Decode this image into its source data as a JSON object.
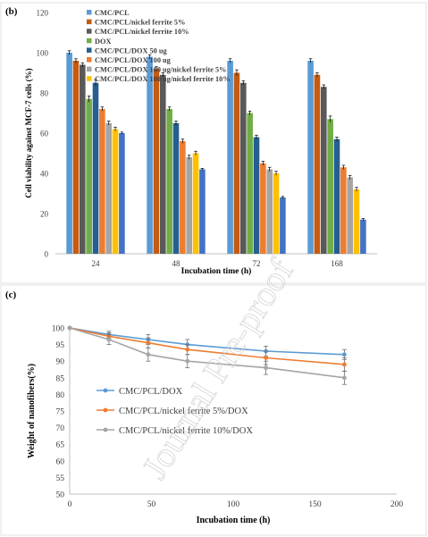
{
  "watermark": "Journal Pre-proof",
  "chart_data": [
    {
      "panel_label": "(b)",
      "type": "bar",
      "title": "",
      "xlabel": "Incubation time (h)",
      "ylabel": "Cell viability against MCF-7 cells (%)",
      "ylim": [
        0,
        120
      ],
      "yticks": [
        "0",
        "20",
        "40",
        "60",
        "80",
        "100",
        "120"
      ],
      "categories": [
        "24",
        "48",
        "72",
        "168"
      ],
      "grid": false,
      "legend_position": "top-left",
      "series": [
        {
          "name": "CMC/PCL",
          "color": "#5b9bd5",
          "values": [
            100,
            98,
            96,
            96
          ],
          "errors": [
            1,
            1,
            1,
            1
          ]
        },
        {
          "name": "CMC/PCL/nickel ferrite 5%",
          "color": "#c55a11",
          "values": [
            96,
            92,
            90,
            89
          ],
          "errors": [
            1,
            1,
            1.5,
            1
          ]
        },
        {
          "name": "CMC/PCL/nickel ferrite 10%",
          "color": "#595959",
          "values": [
            94,
            89,
            85,
            83
          ],
          "errors": [
            1,
            1,
            1,
            1
          ]
        },
        {
          "name": "DOX",
          "color": "#70ad47",
          "values": [
            77,
            72,
            70,
            67
          ],
          "errors": [
            1.5,
            1,
            1,
            1.5
          ]
        },
        {
          "name": "CMC/PCL/DOX 50 ug",
          "color": "#255e91",
          "values": [
            85,
            65,
            58,
            57
          ],
          "errors": [
            1.5,
            1,
            1,
            1
          ]
        },
        {
          "name": "CMC/PCL/DOX 100 ug",
          "color": "#ed7d31",
          "values": [
            72,
            56,
            45,
            43
          ],
          "errors": [
            1,
            1,
            1,
            1
          ]
        },
        {
          "name": "CMC/PCL/DOX 100 ug/nickel ferrite 5%",
          "color": "#a5a5a5",
          "values": [
            65,
            48,
            42,
            38
          ],
          "errors": [
            1,
            1,
            1,
            1
          ]
        },
        {
          "name": "CMC/PCL/DOX 100 ug/nickel ferrite 10%",
          "color": "#ffc000",
          "values": [
            62,
            50,
            40,
            32
          ],
          "errors": [
            1,
            1,
            1,
            1
          ]
        },
        {
          "name": "",
          "color": "#4472c4",
          "values": [
            60,
            42,
            28,
            17
          ],
          "errors": [
            0.5,
            0.5,
            0.5,
            0.5
          ]
        }
      ]
    },
    {
      "panel_label": "(c)",
      "type": "line",
      "title": "",
      "xlabel": "Incubation time (h)",
      "ylabel": "Weight of nanofibers(%)",
      "xlim": [
        0,
        200
      ],
      "ylim": [
        50,
        100
      ],
      "xticks": [
        "0",
        "50",
        "100",
        "150",
        "200"
      ],
      "yticks": [
        "50",
        "55",
        "60",
        "65",
        "70",
        "75",
        "80",
        "85",
        "90",
        "95",
        "100"
      ],
      "grid": false,
      "legend_position": "middle-left",
      "series": [
        {
          "name": "CMC/PCL/DOX",
          "color": "#5b9bd5",
          "x": [
            0,
            24,
            48,
            72,
            120,
            168
          ],
          "y": [
            100,
            98,
            96.5,
            95,
            93,
            92
          ],
          "errors": [
            0,
            1,
            1.5,
            1.5,
            1.5,
            1.5
          ]
        },
        {
          "name": "CMC/PCL/nickel ferrite 5%/DOX",
          "color": "#ed7d31",
          "x": [
            0,
            24,
            48,
            72,
            120,
            168
          ],
          "y": [
            100,
            97.5,
            95.5,
            93.5,
            91,
            89
          ],
          "errors": [
            0,
            1,
            1.5,
            1.5,
            2,
            2
          ]
        },
        {
          "name": "CMC/PCL/nickel ferrite 10%/DOX",
          "color": "#a5a5a5",
          "x": [
            0,
            24,
            48,
            72,
            120,
            168
          ],
          "y": [
            100,
            96.5,
            92,
            90,
            88,
            85
          ],
          "errors": [
            0,
            1.5,
            2,
            2,
            2,
            2
          ]
        }
      ]
    }
  ]
}
